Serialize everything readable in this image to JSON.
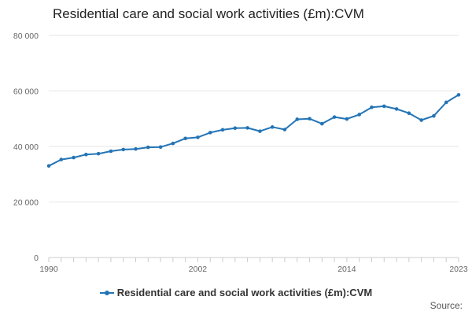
{
  "title": "Residential care and social work activities (£m):CVM",
  "source_label": "Source:",
  "colors": {
    "series": "#2374b6",
    "grid": "#e6e6e6",
    "axis": "#cccccc"
  },
  "chart_data": {
    "type": "line",
    "title": "Residential care and social work activities (£m):CVM",
    "x": [
      1990,
      1991,
      1992,
      1993,
      1994,
      1995,
      1996,
      1997,
      1998,
      1999,
      2000,
      2001,
      2002,
      2003,
      2004,
      2005,
      2006,
      2007,
      2008,
      2009,
      2010,
      2011,
      2012,
      2013,
      2014,
      2015,
      2016,
      2017,
      2018,
      2019,
      2020,
      2021,
      2022,
      2023
    ],
    "series": [
      {
        "name": "Residential care and social work activities (£m):CVM",
        "values": [
          33000,
          35300,
          36000,
          37100,
          37400,
          38300,
          38900,
          39100,
          39700,
          39800,
          41100,
          42900,
          43300,
          45000,
          46000,
          46600,
          46700,
          45500,
          47000,
          46100,
          49800,
          50000,
          48200,
          50600,
          49900,
          51500,
          54100,
          54500,
          53500,
          52000,
          49500,
          51000,
          55900,
          58600
        ]
      }
    ],
    "xticks": [
      1990,
      2002,
      2014,
      2023
    ],
    "yticks": [
      0,
      20000,
      40000,
      60000,
      80000
    ],
    "ytick_labels": [
      "0",
      "20 000",
      "40 000",
      "60 000",
      "80 000"
    ],
    "xlim": [
      1990,
      2023
    ],
    "ylim": [
      0,
      80000
    ],
    "grid": "horizontal",
    "legend_position": "bottom"
  }
}
